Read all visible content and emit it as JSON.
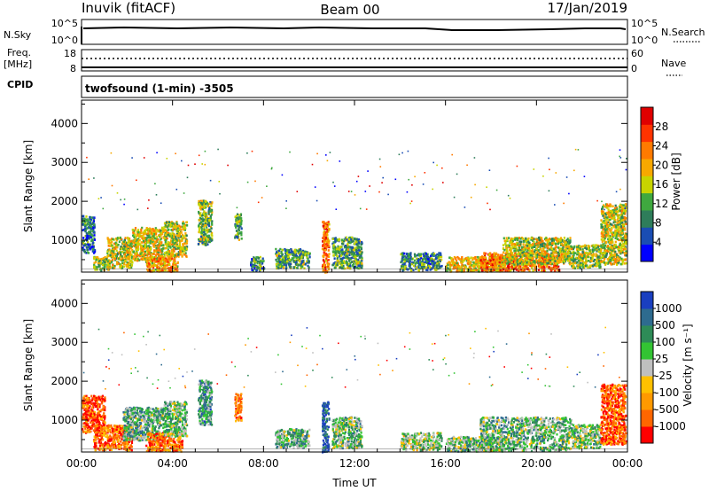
{
  "header": {
    "station": "Inuvik (fitACF)",
    "beam": "Beam 00",
    "date": "17/Jan/2019"
  },
  "strip_labels": {
    "nsky": "N.Sky",
    "nsky_ticks": [
      "10^5",
      "10^0"
    ],
    "nsearch": "N.Search",
    "nsearch_ticks": [
      "10^5",
      "10^0"
    ],
    "freq_line1": "Freq.",
    "freq_line2": "[MHz]",
    "freq_ticks": [
      "18",
      "8"
    ],
    "nave": "Nave",
    "nave_ticks": [
      "60",
      "0"
    ],
    "cpid": "CPID",
    "mode": "twofsound (1-min) -3505"
  },
  "colors": {
    "power_scale": [
      "#0000ff",
      "#1a4db3",
      "#2e7d5a",
      "#3fa83f",
      "#c8d400",
      "#f7a800",
      "#ff7a00",
      "#ff3300",
      "#e00000"
    ],
    "velocity_scale": [
      "#ff0000",
      "#ff6600",
      "#ff9900",
      "#ffc000",
      "#bfbfbf",
      "#33c433",
      "#2e8b57",
      "#2e6b8f",
      "#1a3fc0"
    ]
  },
  "chart_data": [
    {
      "type": "heatmap",
      "name": "power",
      "xlabel": "",
      "ylabel": "Slant Range [km]",
      "x_ticks": [
        "00:00",
        "04:00",
        "08:00",
        "12:00",
        "16:00",
        "20:00",
        "00:00"
      ],
      "y_ticks": [
        "1000",
        "2000",
        "3000",
        "4000"
      ],
      "xlim_hours": [
        0,
        24
      ],
      "ylim_km": [
        180,
        4600
      ],
      "colorbar": {
        "label": "Power [dB]",
        "ticks": [
          "4",
          "8",
          "12",
          "16",
          "20",
          "24",
          "28"
        ],
        "range": [
          0,
          30
        ]
      },
      "regions": [
        {
          "t0": 0.0,
          "t1": 0.55,
          "r0": 700,
          "r1": 1650,
          "level": 0.25
        },
        {
          "t0": 0.5,
          "t1": 1.2,
          "r0": 250,
          "r1": 600,
          "level": 0.45
        },
        {
          "t0": 1.1,
          "t1": 2.2,
          "r0": 300,
          "r1": 1100,
          "level": 0.5
        },
        {
          "t0": 2.2,
          "t1": 3.6,
          "r0": 500,
          "r1": 1350,
          "level": 0.55
        },
        {
          "t0": 2.8,
          "t1": 4.2,
          "r0": 220,
          "r1": 600,
          "level": 0.65
        },
        {
          "t0": 3.6,
          "t1": 4.6,
          "r0": 600,
          "r1": 1500,
          "level": 0.5
        },
        {
          "t0": 5.1,
          "t1": 5.7,
          "r0": 900,
          "r1": 2050,
          "level": 0.4
        },
        {
          "t0": 6.7,
          "t1": 7.0,
          "r0": 1000,
          "r1": 1700,
          "level": 0.35
        },
        {
          "t0": 7.4,
          "t1": 8.0,
          "r0": 250,
          "r1": 600,
          "level": 0.3
        },
        {
          "t0": 8.5,
          "t1": 10.0,
          "r0": 300,
          "r1": 800,
          "level": 0.35
        },
        {
          "t0": 10.55,
          "t1": 10.85,
          "r0": 200,
          "r1": 1500,
          "level": 0.75
        },
        {
          "t0": 11.0,
          "t1": 12.3,
          "r0": 300,
          "r1": 1100,
          "level": 0.35
        },
        {
          "t0": 14.0,
          "t1": 15.8,
          "r0": 250,
          "r1": 700,
          "level": 0.3
        },
        {
          "t0": 16.0,
          "t1": 18.5,
          "r0": 220,
          "r1": 600,
          "level": 0.55
        },
        {
          "t0": 17.5,
          "t1": 21.0,
          "r0": 230,
          "r1": 700,
          "level": 0.75
        },
        {
          "t0": 18.5,
          "t1": 21.5,
          "r0": 400,
          "r1": 1100,
          "level": 0.5
        },
        {
          "t0": 21.5,
          "t1": 22.8,
          "r0": 300,
          "r1": 900,
          "level": 0.45
        },
        {
          "t0": 22.8,
          "t1": 23.9,
          "r0": 400,
          "r1": 1950,
          "level": 0.5
        }
      ]
    },
    {
      "type": "heatmap",
      "name": "velocity",
      "xlabel": "Time UT",
      "ylabel": "Slant Range [km]",
      "x_ticks": [
        "00:00",
        "04:00",
        "08:00",
        "12:00",
        "16:00",
        "20:00",
        "00:00"
      ],
      "y_ticks": [
        "1000",
        "2000",
        "3000",
        "4000"
      ],
      "xlim_hours": [
        0,
        24
      ],
      "ylim_km": [
        180,
        4600
      ],
      "colorbar": {
        "label": "Velocity [m s⁻¹]",
        "ticks": [
          "-1000",
          "-500",
          "-100",
          "-25",
          "25",
          "100",
          "500",
          "1000"
        ],
        "range": [
          -1200,
          1200
        ]
      },
      "regions": [
        {
          "t0": 0.0,
          "t1": 1.0,
          "r0": 700,
          "r1": 1650,
          "level": 0.15
        },
        {
          "t0": 0.5,
          "t1": 2.2,
          "r0": 250,
          "r1": 900,
          "level": 0.2
        },
        {
          "t0": 1.8,
          "t1": 3.6,
          "r0": 500,
          "r1": 1350,
          "level": 0.65
        },
        {
          "t0": 2.8,
          "t1": 4.4,
          "r0": 220,
          "r1": 700,
          "level": 0.2
        },
        {
          "t0": 3.6,
          "t1": 4.6,
          "r0": 600,
          "r1": 1500,
          "level": 0.6
        },
        {
          "t0": 5.1,
          "t1": 5.7,
          "r0": 900,
          "r1": 2050,
          "level": 0.7
        },
        {
          "t0": 6.7,
          "t1": 7.0,
          "r0": 1000,
          "r1": 1700,
          "level": 0.2
        },
        {
          "t0": 8.5,
          "t1": 10.0,
          "r0": 300,
          "r1": 800,
          "level": 0.65
        },
        {
          "t0": 10.55,
          "t1": 10.85,
          "r0": 200,
          "r1": 1500,
          "level": 0.9
        },
        {
          "t0": 11.0,
          "t1": 12.3,
          "r0": 300,
          "r1": 1100,
          "level": 0.6
        },
        {
          "t0": 14.0,
          "t1": 15.8,
          "r0": 250,
          "r1": 700,
          "level": 0.55
        },
        {
          "t0": 16.0,
          "t1": 18.5,
          "r0": 220,
          "r1": 600,
          "level": 0.6
        },
        {
          "t0": 17.5,
          "t1": 21.5,
          "r0": 230,
          "r1": 1100,
          "level": 0.62
        },
        {
          "t0": 21.5,
          "t1": 22.8,
          "r0": 300,
          "r1": 900,
          "level": 0.58
        },
        {
          "t0": 22.8,
          "t1": 23.9,
          "r0": 400,
          "r1": 1950,
          "level": 0.15
        }
      ]
    }
  ]
}
